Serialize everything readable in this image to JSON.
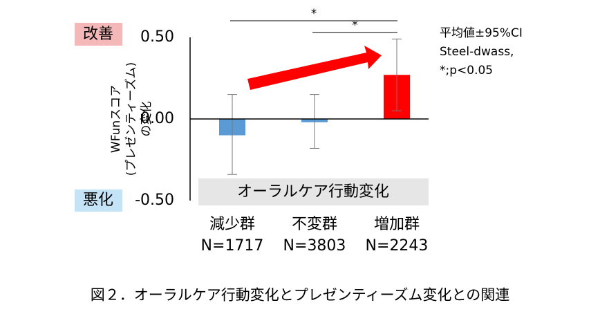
{
  "chart_data": {
    "type": "bar",
    "y_label_lines": [
      "WFunスコア",
      "(プレゼンティーズム)",
      "の変化"
    ],
    "improve_label": "改善",
    "worsen_label": "悪化",
    "x_label": "オーラルケア行動変化",
    "categories": [
      "減少群",
      "不変群",
      "増加群"
    ],
    "n_labels": [
      "N=1717",
      "N=3803",
      "N=2243"
    ],
    "series": [
      {
        "values": [
          -0.1,
          -0.02,
          0.27
        ],
        "ci_low": [
          -0.34,
          -0.18,
          0.05
        ],
        "ci_high": [
          0.15,
          0.15,
          0.49
        ],
        "colors": [
          "#5b9bd5",
          "#5b9bd5",
          "#ff0000"
        ]
      }
    ],
    "ylim": [
      -0.5,
      0.5
    ],
    "yticks": [
      {
        "value": 0.5,
        "label": "0.50"
      },
      {
        "value": 0,
        "label": "0.00"
      },
      {
        "value": -0.5,
        "label": "-0.50"
      }
    ],
    "significance": [
      {
        "from": 0,
        "to": 2,
        "label": "*"
      },
      {
        "from": 1,
        "to": 2,
        "label": "*"
      }
    ],
    "annotation_lines": [
      "平均値±95%CI",
      "Steel-dwass,",
      "*;p<0.05"
    ],
    "caption": "図２．オーラルケア行動変化とプレゼンティーズム変化との関連"
  }
}
